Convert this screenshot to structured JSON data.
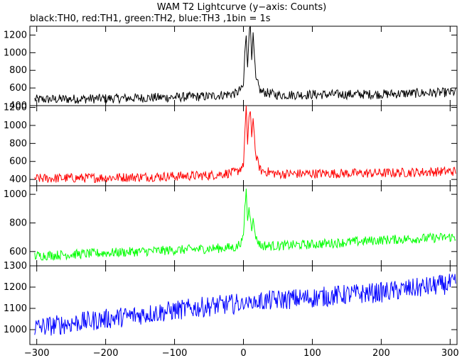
{
  "title": "WAM T2 Lightcurve (y−axis: Counts)",
  "subtitle": "black:TH0, red:TH1, green:TH2, blue:TH3 ,1bin = 1s",
  "chart_data": {
    "type": "line",
    "title": "WAM T2 Lightcurve (y−axis: Counts)",
    "subtitle": "black:TH0, red:TH1, green:TH2, blue:TH3 ,1bin = 1s",
    "xlabel": "",
    "x_ticks": [
      -300,
      -200,
      -100,
      0,
      100,
      200,
      300
    ],
    "x_tick_labels": [
      "−300",
      "−200",
      "−100",
      "0",
      "100",
      "200",
      "300"
    ],
    "xlim": [
      -310,
      310
    ],
    "grid": false,
    "series": [
      {
        "name": "TH0",
        "color": "#000000",
        "ylim": [
          400,
          1300
        ],
        "y_ticks": [
          400,
          600,
          800,
          1000,
          1200
        ],
        "y_tick_labels": [
          "400",
          "600",
          "800",
          "1000",
          "1200"
        ],
        "x": [
          -300,
          -200,
          -100,
          -50,
          -10,
          -5,
          0,
          2,
          4,
          6,
          8,
          10,
          12,
          14,
          18,
          25,
          50,
          100,
          200,
          300
        ],
        "values": [
          470,
          480,
          495,
          505,
          540,
          580,
          620,
          1000,
          1180,
          850,
          1200,
          1320,
          950,
          1200,
          700,
          560,
          520,
          525,
          530,
          550
        ]
      },
      {
        "name": "TH1",
        "color": "#ff0000",
        "ylim": [
          330,
          1220
        ],
        "y_ticks": [
          400,
          600,
          800,
          1000,
          1200
        ],
        "y_tick_labels": [
          "400",
          "600",
          "800",
          "1000",
          "1200"
        ],
        "x": [
          -300,
          -200,
          -100,
          -50,
          -10,
          -5,
          0,
          2,
          4,
          6,
          8,
          10,
          12,
          14,
          18,
          25,
          50,
          100,
          200,
          300
        ],
        "values": [
          410,
          420,
          435,
          445,
          480,
          520,
          560,
          900,
          1200,
          800,
          1100,
          1150,
          850,
          1100,
          650,
          500,
          460,
          465,
          470,
          490
        ]
      },
      {
        "name": "TH2",
        "color": "#00ff00",
        "ylim": [
          500,
          1060
        ],
        "y_ticks": [
          600,
          800,
          1000
        ],
        "y_tick_labels": [
          "600",
          "800",
          "1000"
        ],
        "x": [
          -300,
          -200,
          -100,
          -50,
          -10,
          -5,
          0,
          2,
          4,
          6,
          8,
          10,
          12,
          14,
          18,
          25,
          50,
          100,
          200,
          300
        ],
        "values": [
          570,
          590,
          610,
          620,
          630,
          660,
          700,
          900,
          1030,
          820,
          900,
          850,
          760,
          820,
          700,
          640,
          640,
          650,
          680,
          700
        ]
      },
      {
        "name": "TH3",
        "color": "#0000ff",
        "ylim": [
          930,
          1300
        ],
        "y_ticks": [
          1000,
          1100,
          1200,
          1300
        ],
        "y_tick_labels": [
          "1000",
          "1100",
          "1200",
          "1300"
        ],
        "x": [
          -300,
          -250,
          -200,
          -150,
          -100,
          -50,
          0,
          50,
          100,
          150,
          200,
          250,
          300
        ],
        "values": [
          1010,
          1030,
          1050,
          1070,
          1090,
          1110,
          1125,
          1140,
          1150,
          1165,
          1175,
          1195,
          1215
        ]
      }
    ]
  }
}
